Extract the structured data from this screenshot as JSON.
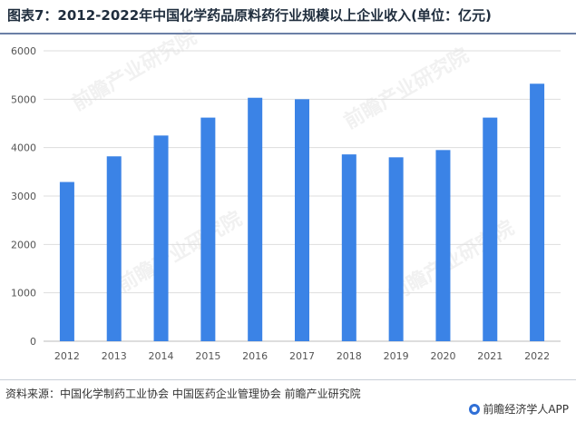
{
  "title": "图表7：2012-2022年中国化学药品原料药行业规模以上企业收入(单位：亿元)",
  "source": "资料来源：中国化学制药工业协会 中国医药企业管理协会 前瞻产业研究院",
  "brand": "前瞻经济学人APP",
  "watermark": "前瞻产业研究院",
  "colors": {
    "bar": "#3b83e6",
    "axis": "#bbbbbb",
    "grid": "#dddddd",
    "tick": "#555555"
  },
  "chart_data": {
    "type": "bar",
    "title": "图表7：2012-2022年中国化学药品原料药行业规模以上企业收入(单位：亿元)",
    "categories": [
      "2012",
      "2013",
      "2014",
      "2015",
      "2016",
      "2017",
      "2018",
      "2019",
      "2020",
      "2021",
      "2022"
    ],
    "values": [
      3290,
      3820,
      4250,
      4620,
      5030,
      5000,
      3860,
      3800,
      3950,
      4620,
      5320
    ],
    "ylim": [
      0,
      6000
    ],
    "yticks": [
      0,
      1000,
      2000,
      3000,
      4000,
      5000,
      6000
    ],
    "grid": true,
    "legend": "none"
  }
}
